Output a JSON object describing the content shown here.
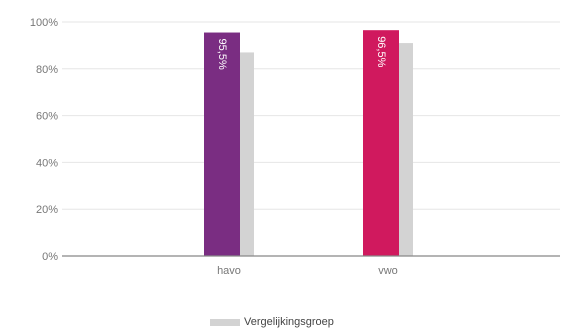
{
  "chart_data": {
    "type": "bar",
    "categories": [
      "havo",
      "vwo"
    ],
    "ylim": [
      0,
      100
    ],
    "yticks": [
      "0%",
      "20%",
      "40%",
      "60%",
      "80%",
      "100%"
    ],
    "series": [
      {
        "values": [
          95.5,
          96.5
        ],
        "labels": [
          "95,5%",
          "96,5%"
        ],
        "colors": [
          "#7a2d82",
          "#d0195e"
        ]
      },
      {
        "name": "Vergelijkingsgroep",
        "values": [
          87,
          91
        ],
        "color": "#d3d3d3"
      }
    ],
    "grid": true,
    "legend": "bottom"
  }
}
